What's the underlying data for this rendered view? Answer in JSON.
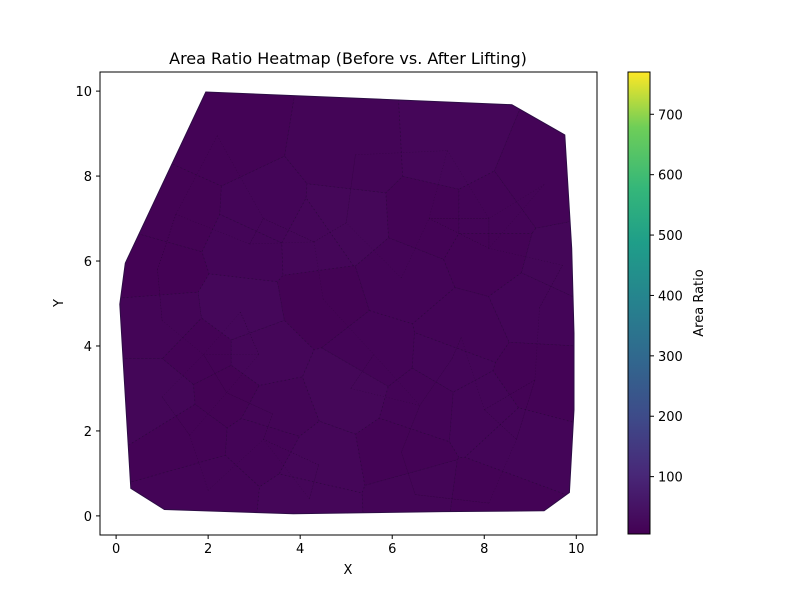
{
  "chart_data": {
    "type": "heatmap",
    "title": "Area Ratio Heatmap (Before vs. After Lifting)",
    "xlabel": "X",
    "ylabel": "Y",
    "xlim": [
      -0.35,
      10.45
    ],
    "ylim": [
      -0.45,
      10.45
    ],
    "x_ticks": [
      0,
      2,
      4,
      6,
      8,
      10
    ],
    "y_ticks": [
      0,
      2,
      4,
      6,
      8,
      10
    ],
    "grid": false,
    "colormap": "viridis",
    "colorbar": {
      "label": "Area Ratio",
      "range": [
        5,
        770
      ],
      "ticks": [
        100,
        200,
        300,
        400,
        500,
        600,
        700
      ]
    },
    "hull": [
      [
        1.95,
        9.98
      ],
      [
        8.6,
        9.68
      ],
      [
        9.75,
        8.97
      ],
      [
        9.9,
        6.3
      ],
      [
        9.95,
        4.3
      ],
      [
        9.95,
        2.5
      ],
      [
        9.85,
        0.55
      ],
      [
        9.3,
        0.12
      ],
      [
        7.1,
        0.1
      ],
      [
        3.85,
        0.05
      ],
      [
        1.05,
        0.15
      ],
      [
        0.32,
        0.65
      ],
      [
        0.08,
        4.98
      ],
      [
        0.2,
        5.95
      ]
    ],
    "mesh_points": [
      [
        2.2,
        8.95
      ],
      [
        5.2,
        8.5
      ],
      [
        7.2,
        8.6
      ],
      [
        9.3,
        7.8
      ],
      [
        1.3,
        7.1
      ],
      [
        3.2,
        7.0
      ],
      [
        5.0,
        6.9
      ],
      [
        6.8,
        7.0
      ],
      [
        8.1,
        7.0
      ],
      [
        9.7,
        5.9
      ],
      [
        0.9,
        5.8
      ],
      [
        2.9,
        6.4
      ],
      [
        4.3,
        6.45
      ],
      [
        6.2,
        5.6
      ],
      [
        8.1,
        6.3
      ],
      [
        1.0,
        4.6
      ],
      [
        2.7,
        4.8
      ],
      [
        4.5,
        5.1
      ],
      [
        7.5,
        4.2
      ],
      [
        9.2,
        4.9
      ],
      [
        1.9,
        3.8
      ],
      [
        3.1,
        3.8
      ],
      [
        5.6,
        3.8
      ],
      [
        7.3,
        3.7
      ],
      [
        9.1,
        3.2
      ],
      [
        1.0,
        2.8
      ],
      [
        2.4,
        2.9
      ],
      [
        3.4,
        2.4
      ],
      [
        5.1,
        3.0
      ],
      [
        6.6,
        2.6
      ],
      [
        8.0,
        2.5
      ],
      [
        1.6,
        1.9
      ],
      [
        3.2,
        1.8
      ],
      [
        4.4,
        1.2
      ],
      [
        6.2,
        1.5
      ],
      [
        8.7,
        1.8
      ],
      [
        2.0,
        0.6
      ],
      [
        4.2,
        0.4
      ],
      [
        6.5,
        0.5
      ],
      [
        8.1,
        0.3
      ]
    ],
    "cell_values": [
      10,
      14,
      18,
      12,
      9,
      16,
      20,
      11,
      13,
      17,
      8,
      15,
      19,
      12,
      10,
      14,
      21,
      9,
      13,
      16,
      11,
      18,
      12,
      15,
      10,
      17,
      9,
      14,
      20,
      12,
      16,
      11,
      13,
      19,
      10,
      15,
      12,
      18,
      14,
      11
    ]
  }
}
